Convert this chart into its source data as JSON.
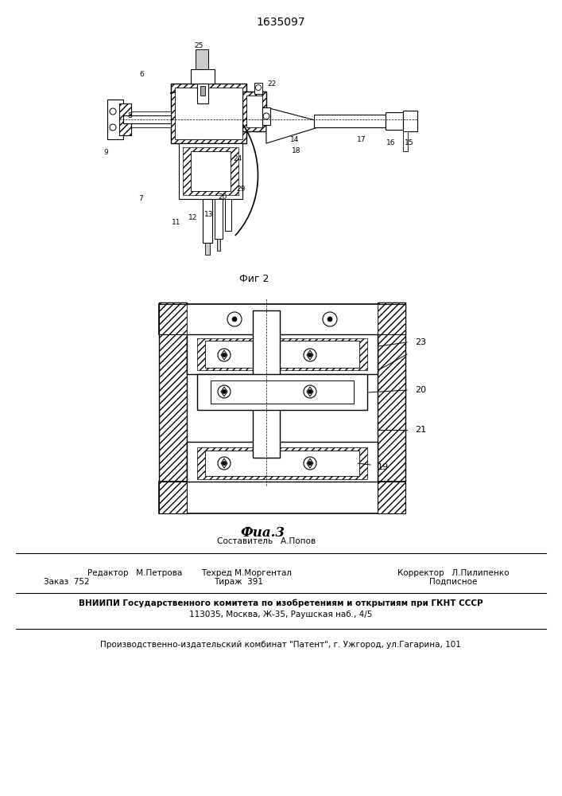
{
  "patent_number": "1635097",
  "fig2_label": "Фиг 2",
  "fig3_label": "Фиа.3",
  "background_color": "#ffffff",
  "editor_line": "Редактор   М.Петрова",
  "compiler_line": "Составитель   А.Попов",
  "techred_line": "Техред М.Моргентал",
  "corrector_line": "Корректор   Л.Пилипенко",
  "order_line": "Заказ  752",
  "tirazh_line": "Тираж  391",
  "podpisnoe_line": "Подписное",
  "vniiipi_line1": "ВНИИПИ Государственного комитета по изобретениям и открытиям при ГКНТ СССР",
  "vniiipi_line2": "113035, Москва, Ж-35, Раушская наб., 4/5",
  "producer_line": "Производственно-издательский комбинат \"Патент\", г. Ужгород, ул.Гагарина, 101",
  "fig3_labels": [
    [
      535,
      500,
      "23"
    ],
    [
      537,
      555,
      "20"
    ],
    [
      537,
      605,
      "21"
    ],
    [
      480,
      680,
      "19"
    ]
  ],
  "fig2_labels": [
    [
      250,
      120,
      "25"
    ],
    [
      170,
      145,
      "6"
    ],
    [
      155,
      210,
      "8"
    ],
    [
      130,
      255,
      "9"
    ],
    [
      165,
      325,
      "7"
    ],
    [
      215,
      345,
      "11"
    ],
    [
      240,
      320,
      "12"
    ],
    [
      265,
      320,
      "13"
    ],
    [
      270,
      285,
      "20"
    ],
    [
      300,
      280,
      "29"
    ],
    [
      305,
      285,
      "24"
    ],
    [
      340,
      235,
      "22"
    ],
    [
      365,
      210,
      "14"
    ],
    [
      370,
      235,
      "18"
    ],
    [
      450,
      200,
      "17"
    ],
    [
      490,
      190,
      "16"
    ],
    [
      510,
      185,
      "15"
    ]
  ]
}
